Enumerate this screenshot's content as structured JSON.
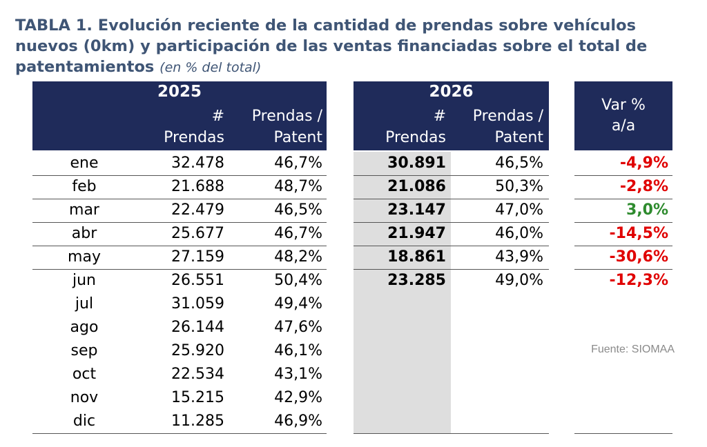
{
  "title": {
    "main": "TABLA 1. Evolución reciente de la cantidad de prendas sobre vehículos nuevos (0km) y participación de las ventas financiadas sobre el total de patentamientos",
    "subtitle": "(en % del total)"
  },
  "colors": {
    "header_bg": "#1f2b5a",
    "title": "#3f5575",
    "negative": "#e00000",
    "positive": "#2e8b2e",
    "highlight_column": "#dedede"
  },
  "headers": {
    "y2025": "2025",
    "y2026": "2026",
    "hash": "#",
    "prendas": "Prendas",
    "prendas_slash": "Prendas /",
    "patent": "Patent",
    "var_line1": "Var %",
    "var_line2": "a/a"
  },
  "months": [
    "ene",
    "feb",
    "mar",
    "abr",
    "may",
    "jun",
    "jul",
    "ago",
    "sep",
    "oct",
    "nov",
    "dic"
  ],
  "data_2025": [
    {
      "prendas": "32.478",
      "pct": "46,7%"
    },
    {
      "prendas": "21.688",
      "pct": "48,7%"
    },
    {
      "prendas": "22.479",
      "pct": "46,5%"
    },
    {
      "prendas": "25.677",
      "pct": "46,7%"
    },
    {
      "prendas": "27.159",
      "pct": "48,2%"
    },
    {
      "prendas": "26.551",
      "pct": "50,4%"
    },
    {
      "prendas": "31.059",
      "pct": "49,4%"
    },
    {
      "prendas": "26.144",
      "pct": "47,6%"
    },
    {
      "prendas": "25.920",
      "pct": "46,1%"
    },
    {
      "prendas": "22.534",
      "pct": "43,1%"
    },
    {
      "prendas": "15.215",
      "pct": "42,9%"
    },
    {
      "prendas": "11.285",
      "pct": "46,9%"
    }
  ],
  "data_2026": [
    {
      "prendas": "30.891",
      "pct": "46,5%"
    },
    {
      "prendas": "21.086",
      "pct": "50,3%"
    },
    {
      "prendas": "23.147",
      "pct": "47,0%"
    },
    {
      "prendas": "21.947",
      "pct": "46,0%"
    },
    {
      "prendas": "18.861",
      "pct": "43,9%"
    },
    {
      "prendas": "23.285",
      "pct": "49,0%"
    }
  ],
  "var_aa": [
    {
      "value": "-4,9%",
      "sign": "negative"
    },
    {
      "value": "-2,8%",
      "sign": "negative"
    },
    {
      "value": "3,0%",
      "sign": "positive"
    },
    {
      "value": "-14,5%",
      "sign": "negative"
    },
    {
      "value": "-30,6%",
      "sign": "negative"
    },
    {
      "value": "-12,3%",
      "sign": "negative"
    }
  ],
  "source": "Fuente: SIOMAA"
}
